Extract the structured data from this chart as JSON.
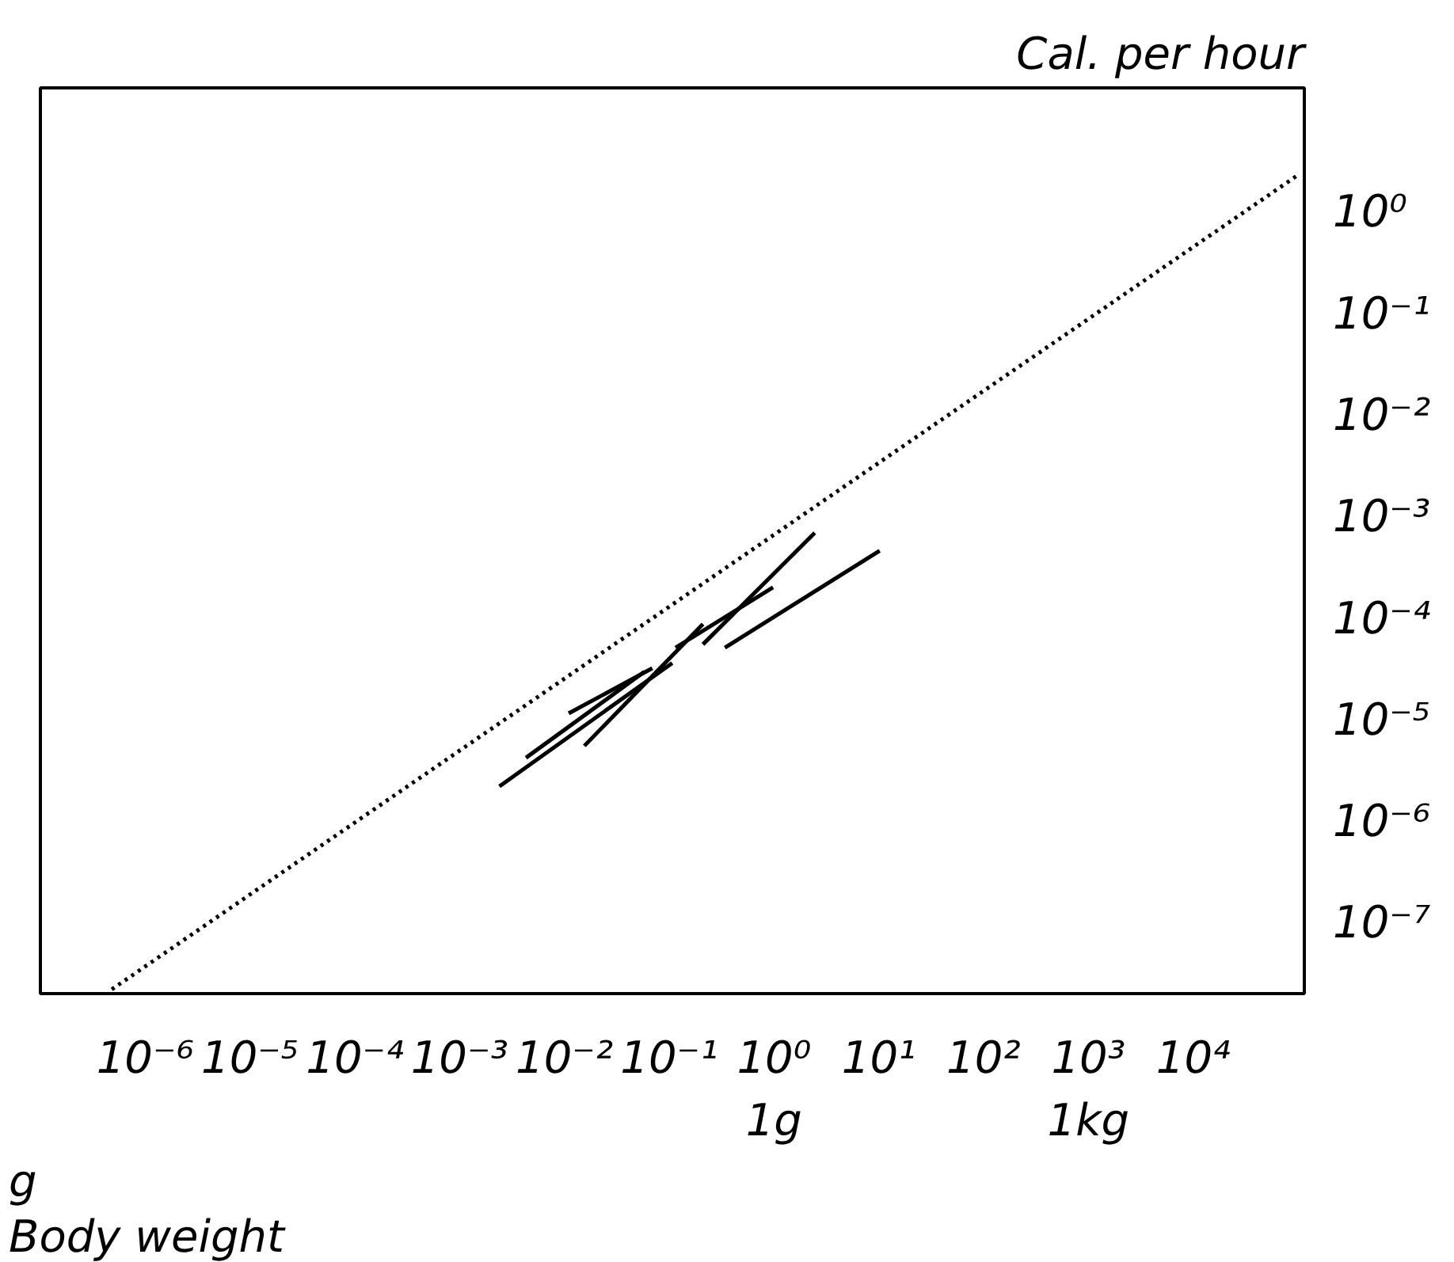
{
  "chart_data": {
    "type": "line",
    "xlabel": "Body weight",
    "ylabel": "Cal. per hour",
    "log": "xy",
    "grid": false,
    "xlim": [
      1e-07,
      115000.0
    ],
    "ylim": [
      2e-08,
      16.6
    ],
    "xticks": [
      {
        "value": 1e-06,
        "label": "10⁻⁶"
      },
      {
        "value": 1e-05,
        "label": "10⁻⁵"
      },
      {
        "value": 0.0001,
        "label": "10⁻⁴"
      },
      {
        "value": 0.001,
        "label": "10⁻³"
      },
      {
        "value": 0.01,
        "label": "10⁻²"
      },
      {
        "value": 0.1,
        "label": "10⁻¹"
      },
      {
        "value": 1,
        "label": "10⁰\n1g"
      },
      {
        "value": 10,
        "label": "10¹"
      },
      {
        "value": 100,
        "label": "10²"
      },
      {
        "value": 1000,
        "label": "10³\n1kg"
      },
      {
        "value": 10000,
        "label": "10⁴"
      }
    ],
    "yticks": [
      {
        "value": 1,
        "label": "10⁰"
      },
      {
        "value": 0.1,
        "label": "10⁻¹"
      },
      {
        "value": 0.01,
        "label": "10⁻²"
      },
      {
        "value": 0.001,
        "label": "10⁻³"
      },
      {
        "value": 0.0001,
        "label": "10⁻⁴"
      },
      {
        "value": 1e-05,
        "label": "10⁻⁵"
      },
      {
        "value": 1e-06,
        "label": "10⁻⁶"
      },
      {
        "value": 1e-07,
        "label": "10⁻⁷"
      }
    ],
    "annotations": [
      "g"
    ],
    "series": [
      {
        "color": "#000000",
        "line_style": "dotted",
        "x": [
          4.8e-07,
          100000.0
        ],
        "values": [
          2.2e-08,
          2.3
        ]
      },
      {
        "color": "#000000",
        "x": [
          0.0024,
          0.107
        ],
        "values": [
          2.2e-06,
          3.6e-05
        ]
      },
      {
        "color": "#000000",
        "x": [
          0.0043,
          0.058
        ],
        "values": [
          4.2e-06,
          2.95e-05
        ]
      },
      {
        "color": "#000000",
        "x": [
          0.011,
          0.069
        ],
        "values": [
          1.15e-05,
          3.2e-05
        ]
      },
      {
        "color": "#000000",
        "x": [
          0.0155,
          0.21
        ],
        "values": [
          5.5e-06,
          8.7e-05
        ]
      },
      {
        "color": "#000000",
        "x": [
          0.21,
          2.45
        ],
        "values": [
          5.5e-05,
          0.00069
        ]
      },
      {
        "color": "#000000",
        "x": [
          0.34,
          10.2
        ],
        "values": [
          5.1e-05,
          0.00046
        ]
      },
      {
        "color": "#000000",
        "x": [
          0.115,
          0.98
        ],
        "values": [
          5.1e-05,
          0.0002
        ]
      }
    ]
  }
}
